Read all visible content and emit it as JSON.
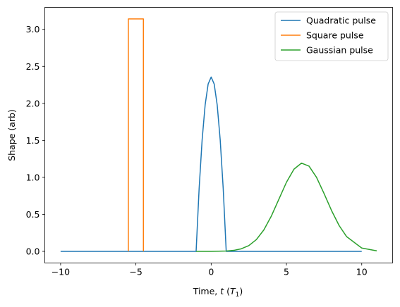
{
  "chart_data": {
    "type": "line",
    "xlabel": "Time, t (T1)",
    "xlabel_parts": {
      "prefix": "Time, ",
      "var": "t",
      "unit_open": " (",
      "unit": "T",
      "unit_sub": "1",
      "unit_close": ")"
    },
    "ylabel": "Shape (arb)",
    "xlim": [
      -11.05,
      12.05
    ],
    "ylim": [
      -0.157,
      3.297
    ],
    "xticks": [
      -10,
      -5,
      0,
      5,
      10
    ],
    "yticks": [
      0.0,
      0.5,
      1.0,
      1.5,
      2.0,
      2.5,
      3.0
    ],
    "xtick_labels": [
      "−10",
      "−5",
      "0",
      "5",
      "10"
    ],
    "ytick_labels": [
      "0.0",
      "0.5",
      "1.0",
      "1.5",
      "2.0",
      "2.5",
      "3.0"
    ],
    "grid": false,
    "legend_position": "upper-right",
    "series": [
      {
        "name": "Quadratic pulse",
        "color": "#1f77b4",
        "x": [
          -10,
          -1,
          -0.8,
          -0.6,
          -0.4,
          -0.2,
          0,
          0.2,
          0.4,
          0.6,
          0.8,
          1,
          10
        ],
        "y": [
          0,
          0,
          0.848,
          1.508,
          1.979,
          2.262,
          2.356,
          2.262,
          1.979,
          1.508,
          0.848,
          0,
          0
        ]
      },
      {
        "name": "Square pulse",
        "color": "#ff7f0e",
        "x": [
          -5.5,
          -5.5,
          -4.5,
          -4.5
        ],
        "y": [
          0,
          3.1416,
          3.1416,
          0
        ]
      },
      {
        "name": "Gaussian pulse",
        "color": "#2ca02c",
        "x": [
          -1,
          0,
          1,
          1.5,
          2,
          2.5,
          3,
          3.5,
          4,
          4.5,
          5,
          5.5,
          6,
          6.5,
          7,
          7.5,
          8,
          8.5,
          9,
          10,
          11
        ],
        "y": [
          0,
          0.0005,
          0.005,
          0.0138,
          0.0346,
          0.0779,
          0.1587,
          0.2903,
          0.4784,
          0.7056,
          0.9337,
          1.1108,
          1.1928,
          1.1517,
          0.9994,
          0.7809,
          0.5497,
          0.3485,
          0.1984,
          0.0453,
          0.0071
        ]
      }
    ]
  }
}
